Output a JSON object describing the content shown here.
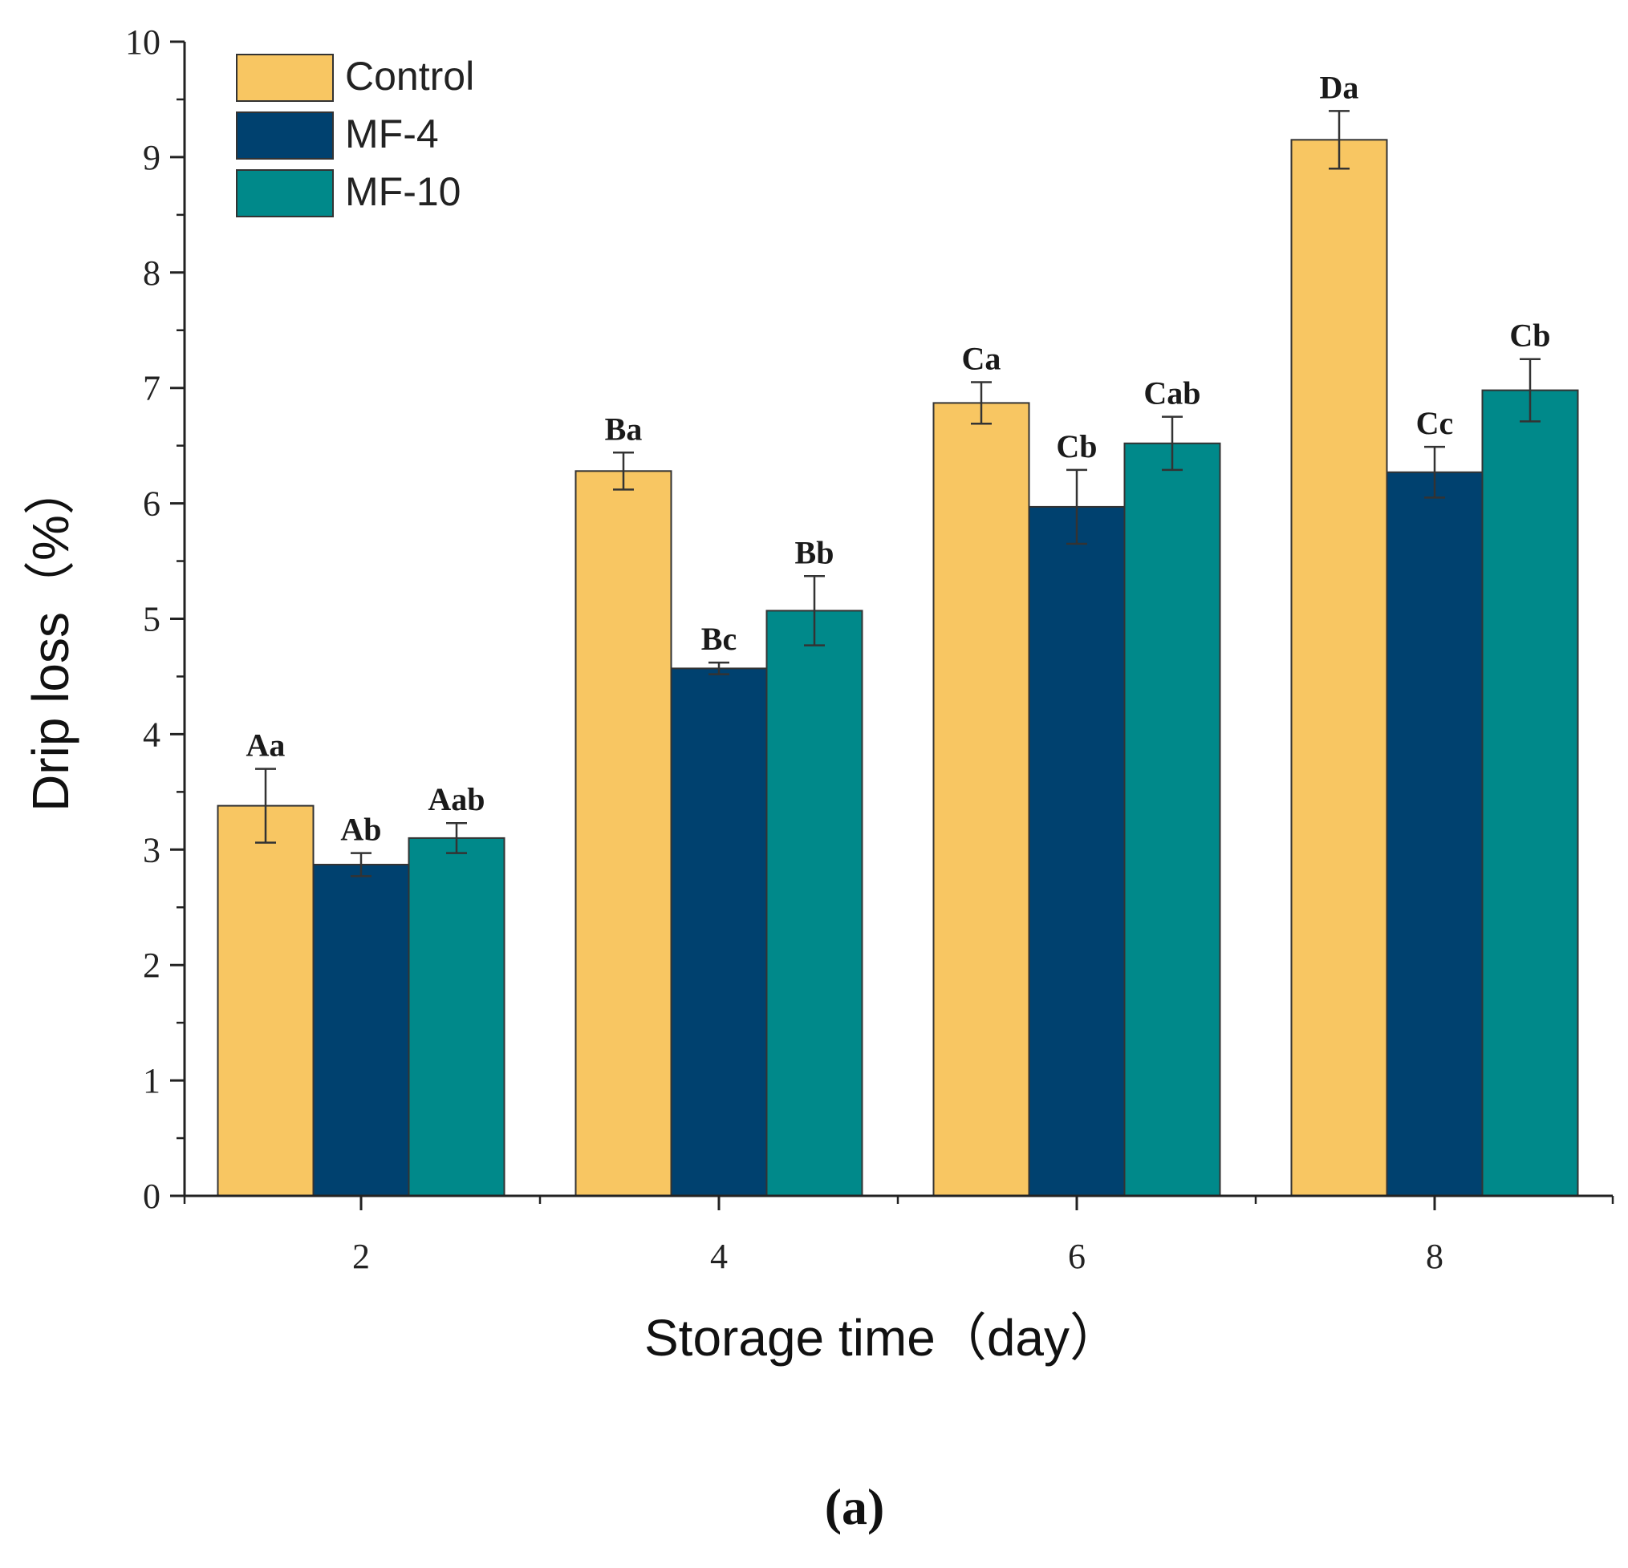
{
  "chart_data": {
    "type": "bar",
    "title": "",
    "xlabel": "Storage time（day）",
    "ylabel": "Drip loss（%）",
    "categories": [
      "2",
      "4",
      "6",
      "8"
    ],
    "ylim": [
      0,
      10
    ],
    "yticks": [
      "0",
      "1",
      "2",
      "3",
      "4",
      "5",
      "6",
      "7",
      "8",
      "9",
      "10"
    ],
    "legend_position": "top-left",
    "grid": false,
    "series": [
      {
        "name": "Control",
        "color": "#F8C662",
        "values": [
          3.38,
          6.28,
          6.87,
          9.15
        ],
        "errors": [
          0.32,
          0.16,
          0.18,
          0.25
        ],
        "labels": [
          "Aa",
          "Ba",
          "Ca",
          "Da"
        ]
      },
      {
        "name": "MF-4",
        "color": "#00416F",
        "values": [
          2.87,
          4.57,
          5.97,
          6.27
        ],
        "errors": [
          0.1,
          0.05,
          0.32,
          0.22
        ],
        "labels": [
          "Ab",
          "Bc",
          "Cb",
          "Cc"
        ]
      },
      {
        "name": "MF-10",
        "color": "#00898A",
        "values": [
          3.1,
          5.07,
          6.52,
          6.98
        ],
        "errors": [
          0.13,
          0.3,
          0.23,
          0.27
        ],
        "labels": [
          "Aab",
          "Bb",
          "Cab",
          "Cb"
        ]
      }
    ]
  },
  "panel_label": "(a)"
}
